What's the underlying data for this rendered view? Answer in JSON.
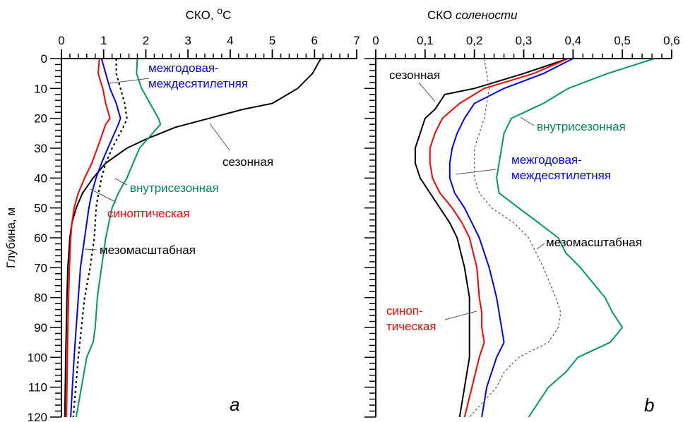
{
  "chart_data": [
    {
      "type": "line",
      "panel_label": "a",
      "title": "СКО, °С",
      "title_main": "СКО, ",
      "title_unit_sup": "о",
      "title_unit": "С",
      "xlabel": "СКО, °С",
      "ylabel": "Глубина, м",
      "xlim": [
        0,
        7
      ],
      "ylim": [
        0,
        120
      ],
      "y_inverted": true,
      "x_ticks": [
        0,
        1,
        2,
        3,
        4,
        5,
        6,
        7
      ],
      "x_tick_labels": [
        "0",
        "1",
        "2",
        "3",
        "4",
        "5",
        "6",
        "7"
      ],
      "y_ticks": [
        0,
        10,
        20,
        30,
        40,
        50,
        60,
        70,
        80,
        90,
        100,
        110,
        120
      ],
      "y_tick_labels": [
        "0",
        "10",
        "20",
        "30",
        "40",
        "50",
        "60",
        "70",
        "80",
        "90",
        "100",
        "110",
        "120"
      ],
      "grid": false,
      "series": [
        {
          "name": "сезонная",
          "color": "#000000",
          "style": "solid",
          "depth": [
            0,
            5,
            10,
            15,
            17,
            20,
            23,
            27,
            30,
            35,
            40,
            45,
            50,
            55,
            60,
            70,
            80,
            100,
            120
          ],
          "values": [
            6.15,
            5.95,
            5.6,
            5.0,
            4.3,
            3.5,
            2.7,
            2.0,
            1.55,
            1.05,
            0.75,
            0.5,
            0.35,
            0.25,
            0.2,
            0.15,
            0.13,
            0.1,
            0.08
          ]
        },
        {
          "name": "синоптическая",
          "color": "#ff0000",
          "style": "solid",
          "depth": [
            0,
            5,
            10,
            15,
            20,
            22,
            30,
            35,
            40,
            45,
            50,
            55,
            60,
            70,
            90,
            120
          ],
          "values": [
            0.9,
            0.87,
            0.98,
            1.05,
            1.15,
            1.05,
            0.85,
            0.72,
            0.55,
            0.4,
            0.3,
            0.25,
            0.22,
            0.19,
            0.15,
            0.12
          ]
        },
        {
          "name": "межгодовая-междесятилетняя",
          "color": "#0000ff",
          "style": "solid",
          "depth": [
            0,
            5,
            10,
            15,
            20,
            22,
            30,
            35,
            40,
            45,
            50,
            60,
            70,
            80,
            100,
            120
          ],
          "values": [
            0.95,
            1.05,
            1.15,
            1.3,
            1.4,
            1.35,
            1.1,
            0.95,
            0.82,
            0.72,
            0.65,
            0.55,
            0.45,
            0.4,
            0.3,
            0.22
          ]
        },
        {
          "name": "мезомасштабная",
          "color": "#000000",
          "style": "dotted",
          "depth": [
            0,
            5,
            10,
            15,
            20,
            22,
            30,
            35,
            40,
            45,
            50,
            60,
            70,
            80,
            100,
            120
          ],
          "values": [
            1.3,
            1.3,
            1.4,
            1.5,
            1.55,
            1.5,
            1.2,
            1.05,
            0.95,
            0.88,
            0.82,
            0.78,
            0.68,
            0.55,
            0.4,
            0.28
          ]
        },
        {
          "name": "внутрисезонная",
          "color": "#00996b",
          "style": "solid",
          "depth": [
            0,
            5,
            10,
            15,
            20,
            22,
            30,
            35,
            40,
            45,
            50,
            60,
            70,
            80,
            90,
            95,
            100,
            120
          ],
          "values": [
            1.8,
            1.78,
            1.9,
            2.1,
            2.3,
            2.35,
            1.85,
            1.7,
            1.55,
            1.35,
            1.2,
            1.05,
            0.95,
            0.85,
            0.8,
            0.75,
            0.6,
            0.35
          ]
        }
      ],
      "annotations": [
        {
          "text": "межгодовая-",
          "color": "#0000ff"
        },
        {
          "text": "междесятилетняя",
          "color": "#0000ff"
        },
        {
          "text": "сезонная",
          "color": "#000000"
        },
        {
          "text": "внутрисезонная",
          "color": "#00996b"
        },
        {
          "text": "синоптическая",
          "color": "#ff0000"
        },
        {
          "text": "мезомасштабная",
          "color": "#000000"
        }
      ]
    },
    {
      "type": "line",
      "panel_label": "b",
      "title": "СКО солености",
      "title_main": "СКО ",
      "title_italic": "солености",
      "xlabel": "СКО солености",
      "ylabel": "Глубина, м",
      "xlim": [
        0,
        0.6
      ],
      "ylim": [
        0,
        120
      ],
      "y_inverted": true,
      "x_ticks": [
        0,
        0.1,
        0.2,
        0.3,
        0.4,
        0.5,
        0.6
      ],
      "x_tick_labels": [
        "0",
        "0,1",
        "0,2",
        "0,3",
        "0,4",
        "0,5",
        "0,6"
      ],
      "grid": false,
      "series": [
        {
          "name": "сезонная",
          "color": "#000000",
          "style": "solid",
          "depth": [
            0,
            5,
            10,
            12,
            17,
            20,
            25,
            30,
            35,
            40,
            45,
            50,
            55,
            60,
            70,
            80,
            90,
            95,
            100,
            110,
            120
          ],
          "values": [
            0.39,
            0.3,
            0.2,
            0.14,
            0.12,
            0.1,
            0.09,
            0.08,
            0.08,
            0.09,
            0.11,
            0.13,
            0.15,
            0.165,
            0.18,
            0.19,
            0.19,
            0.19,
            0.19,
            0.18,
            0.17
          ]
        },
        {
          "name": "синоптическая",
          "color": "#ff0000",
          "style": "solid",
          "depth": [
            0,
            5,
            10,
            15,
            20,
            25,
            30,
            35,
            40,
            45,
            50,
            55,
            60,
            70,
            80,
            85,
            90,
            95,
            100,
            110,
            120
          ],
          "values": [
            0.39,
            0.32,
            0.22,
            0.17,
            0.135,
            0.12,
            0.11,
            0.11,
            0.115,
            0.13,
            0.155,
            0.175,
            0.19,
            0.205,
            0.21,
            0.215,
            0.215,
            0.22,
            0.21,
            0.195,
            0.18
          ]
        },
        {
          "name": "межгодовая-междесятилетняя",
          "color": "#0000ff",
          "style": "solid",
          "depth": [
            0,
            5,
            10,
            15,
            20,
            25,
            30,
            35,
            40,
            45,
            50,
            55,
            60,
            70,
            80,
            85,
            90,
            95,
            100,
            110,
            120
          ],
          "values": [
            0.4,
            0.34,
            0.26,
            0.2,
            0.18,
            0.165,
            0.155,
            0.15,
            0.15,
            0.16,
            0.18,
            0.195,
            0.21,
            0.23,
            0.245,
            0.25,
            0.255,
            0.26,
            0.245,
            0.225,
            0.215
          ]
        },
        {
          "name": "мезомасштабная",
          "color": "#555555",
          "style": "dashed",
          "depth": [
            0,
            5,
            10,
            15,
            20,
            25,
            30,
            40,
            45,
            50,
            55,
            60,
            65,
            70,
            80,
            85,
            90,
            95,
            100,
            105,
            110,
            120
          ],
          "values": [
            0.22,
            0.225,
            0.23,
            0.225,
            0.22,
            0.21,
            0.2,
            0.2,
            0.21,
            0.235,
            0.28,
            0.31,
            0.325,
            0.34,
            0.365,
            0.375,
            0.37,
            0.35,
            0.29,
            0.26,
            0.245,
            0.19
          ]
        },
        {
          "name": "внутрисезонная",
          "color": "#00996b",
          "style": "solid",
          "depth": [
            0,
            5,
            10,
            15,
            20,
            25,
            30,
            35,
            40,
            45,
            50,
            55,
            60,
            65,
            70,
            80,
            85,
            90,
            95,
            100,
            105,
            110,
            120
          ],
          "values": [
            0.565,
            0.47,
            0.39,
            0.34,
            0.275,
            0.26,
            0.255,
            0.25,
            0.245,
            0.25,
            0.29,
            0.33,
            0.37,
            0.385,
            0.415,
            0.465,
            0.48,
            0.5,
            0.475,
            0.41,
            0.385,
            0.35,
            0.31
          ]
        }
      ],
      "annotations": [
        {
          "text": "сезонная",
          "color": "#000000"
        },
        {
          "text": "внутрисезонная",
          "color": "#00996b"
        },
        {
          "text": "межгодовая-",
          "color": "#0000ff"
        },
        {
          "text": "междесятилетняя",
          "color": "#0000ff"
        },
        {
          "text": "мезомасштабная",
          "color": "#000000"
        },
        {
          "text": "синоп-",
          "color": "#ff0000"
        },
        {
          "text": "тическая",
          "color": "#ff0000"
        }
      ]
    }
  ]
}
